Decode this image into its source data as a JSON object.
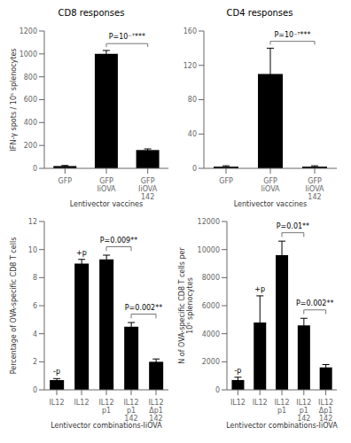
{
  "chart_data": [
    {
      "type": "bar",
      "title": "CD8 responses",
      "categories": [
        "GFP",
        "GFP\nIiOVA",
        "GFP\nIiOVA\n142"
      ],
      "values": [
        20,
        1000,
        160
      ],
      "errors": [
        5,
        30,
        10
      ],
      "color": "#000000",
      "ylim": [
        0,
        1200
      ],
      "yticks": [
        0,
        200,
        400,
        600,
        800,
        1000,
        1200
      ],
      "ylabel": "IFN-γ spots / 10⁵ splenocytes",
      "xlabel": "Lentivector vaccines",
      "grid": false,
      "annotations": [
        {
          "text": "P=10⁻⁷***",
          "x1": 1,
          "x2": 2
        }
      ]
    },
    {
      "type": "bar",
      "title": "CD4 responses",
      "categories": [
        "GFP",
        "GFP\nIiOVA",
        "GFP\nIiOVA\n142"
      ],
      "values": [
        2,
        110,
        2
      ],
      "errors": [
        1,
        30,
        1
      ],
      "color": "#000000",
      "ylim": [
        0,
        160
      ],
      "yticks": [
        0,
        40,
        80,
        120,
        160
      ],
      "xlabel": "Lentivector vaccines",
      "grid": false,
      "annotations": [
        {
          "text": "P=10⁻⁷***",
          "x1": 1,
          "x2": 2
        }
      ]
    },
    {
      "type": "bar",
      "categories": [
        "IL12",
        "IL12",
        "IL12\np1",
        "IL12\np1\n142",
        "IL12\nΔp1\n142"
      ],
      "values": [
        0.7,
        9.0,
        9.3,
        4.5,
        2.0
      ],
      "errors": [
        0.1,
        0.3,
        0.3,
        0.3,
        0.2
      ],
      "color": "#000000",
      "ylim": [
        0,
        12
      ],
      "yticks": [
        0,
        2,
        4,
        6,
        8,
        10,
        12
      ],
      "ylabel": "Percentage of OVA-specific CD8 T cells",
      "xlabel": "Lentivector combinations-IiOVA",
      "grid": false,
      "annotations": [
        {
          "text": "-p",
          "x": 0
        },
        {
          "text": "+p",
          "x": 1
        },
        {
          "text": "P=0.009**",
          "x1": 2,
          "x2": 3
        },
        {
          "text": "P=0.002**",
          "x1": 3,
          "x2": 4
        }
      ]
    },
    {
      "type": "bar",
      "categories": [
        "IL12",
        "IL12",
        "IL12\np1",
        "IL12\np1\n142",
        "IL12\nΔp1\n142"
      ],
      "values": [
        700,
        4800,
        9600,
        4600,
        1600
      ],
      "errors": [
        200,
        1900,
        1000,
        500,
        200
      ],
      "color": "#000000",
      "ylim": [
        0,
        12000
      ],
      "yticks": [
        0,
        2000,
        4000,
        6000,
        8000,
        10000,
        12000
      ],
      "ylabel": "N of OVA-specific CD8 T cells per\n10⁵ splenocytes",
      "xlabel": "Lentivector combinations-IiOVA",
      "grid": false,
      "annotations": [
        {
          "text": "-p",
          "x": 0
        },
        {
          "text": "+p",
          "x": 1
        },
        {
          "text": "P=0.01**",
          "x1": 2,
          "x2": 3
        },
        {
          "text": "P=0.002**",
          "x1": 3,
          "x2": 4
        }
      ]
    }
  ]
}
